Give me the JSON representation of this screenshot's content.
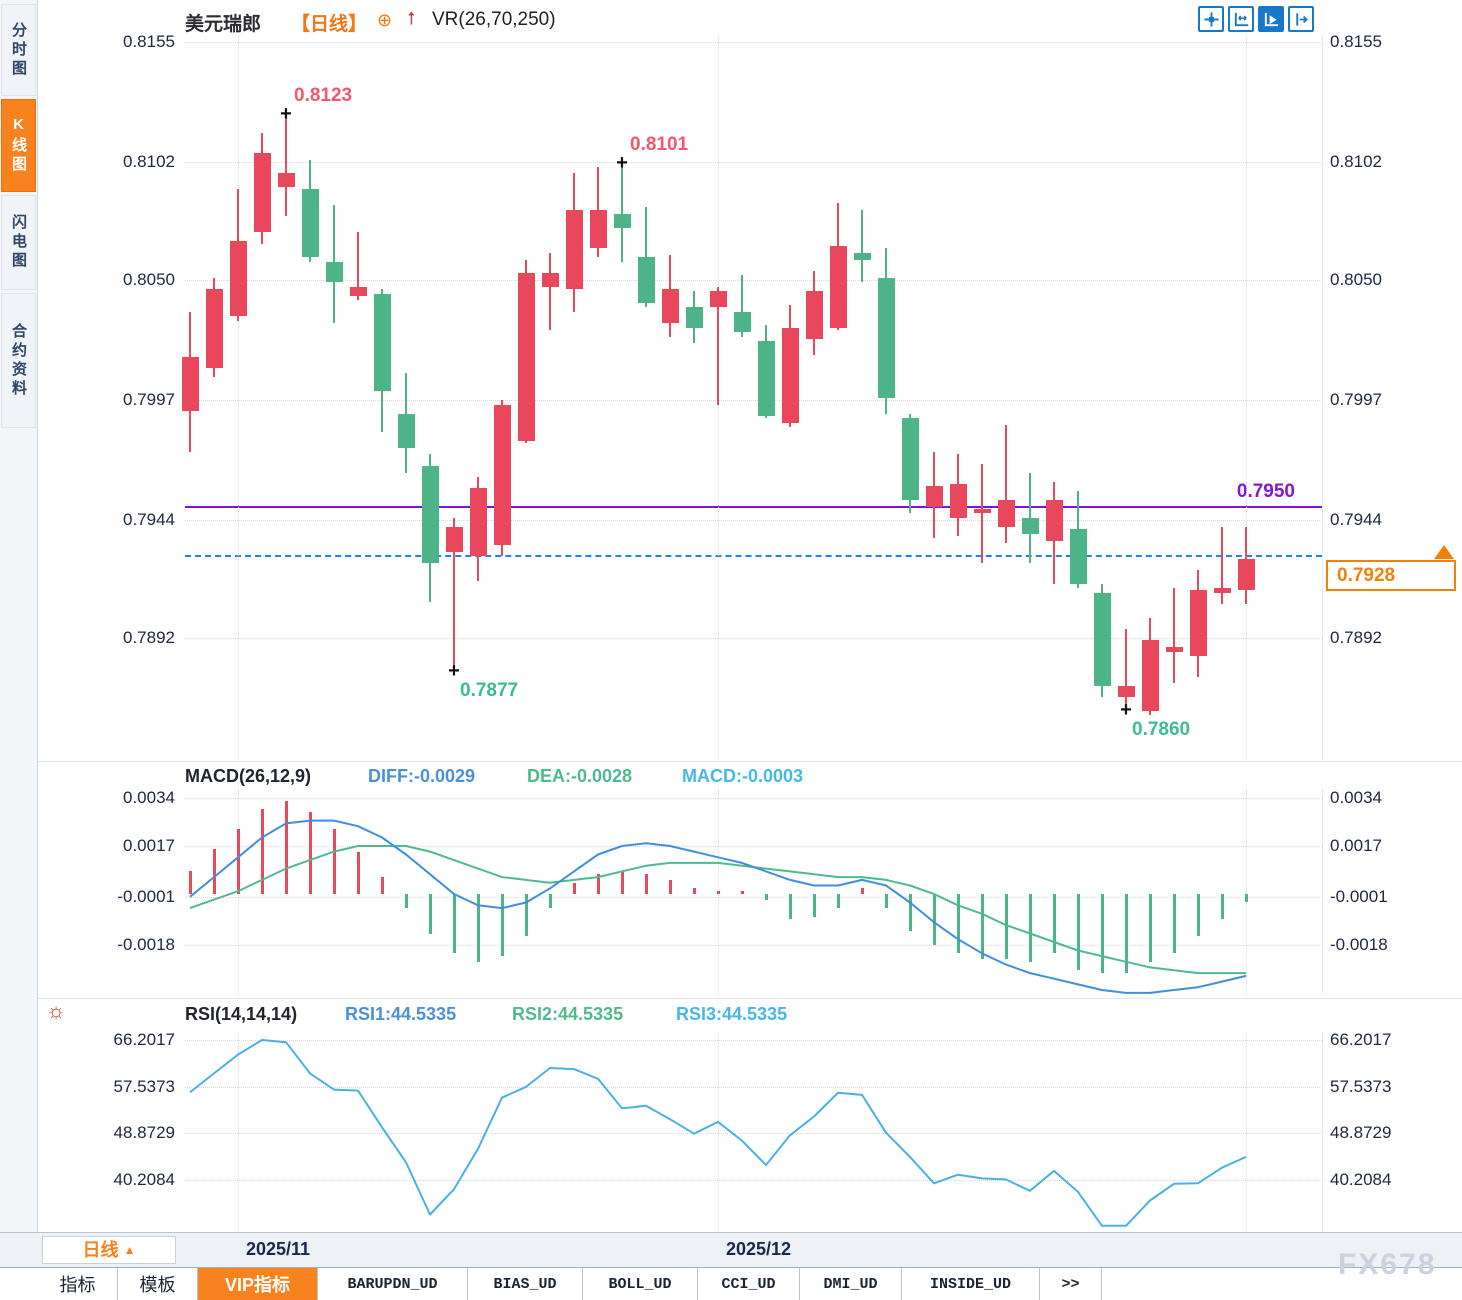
{
  "header": {
    "symbol": "美元瑞郎",
    "period_tag": "【日线】",
    "indicator_label": "VR(26,70,250)"
  },
  "icons": {
    "cross": "+",
    "rsi_sun": "☼",
    "caret_up": "▲",
    "add": "⊕",
    "vr_up_arrow": "↑",
    "toolbar": [
      "pan-crosshair-icon",
      "axis-range-icon",
      "autoplay-scale-icon",
      "go-to-latest-icon"
    ]
  },
  "sidebar": {
    "items": [
      {
        "label": "分时图",
        "active": false
      },
      {
        "label": "K线图",
        "active": true
      },
      {
        "label": "闪电图",
        "active": false
      },
      {
        "label": "合约资料",
        "active": false
      }
    ]
  },
  "colors": {
    "up": "#e9485c",
    "down": "#4cb487",
    "diff_line": "#3f8fdc",
    "dea_line": "#4fba8e",
    "rsi_line": "#49b0e0",
    "support_purple": "#7e10d8",
    "last_price_blue": "#1e82e8",
    "accent_orange": "#f7821e",
    "toolbar_blue": "#1878c8"
  },
  "main_chart": {
    "support_label": "0.7950",
    "price_box": "0.7928"
  },
  "macd_panel": {
    "title": "MACD(26,12,9)",
    "diff_label": "DIFF:-0.0029",
    "dea_label": "DEA:-0.0028",
    "macd_label": "MACD:-0.0003"
  },
  "rsi_panel": {
    "title": "RSI(14,14,14)",
    "rsi1_label": "RSI1:44.5335",
    "rsi2_label": "RSI2:44.5335",
    "rsi3_label": "RSI3:44.5335"
  },
  "bottom": {
    "period_label": "日线",
    "watermark": "FX678",
    "tabs": [
      {
        "label": "指标",
        "mono": false,
        "active": false
      },
      {
        "label": "模板",
        "mono": false,
        "active": false
      },
      {
        "label": "VIP指标",
        "mono": false,
        "active": true
      },
      {
        "label": "BARUPDN_UD",
        "mono": true,
        "active": false
      },
      {
        "label": "BIAS_UD",
        "mono": true,
        "active": false
      },
      {
        "label": "BOLL_UD",
        "mono": true,
        "active": false
      },
      {
        "label": "CCI_UD",
        "mono": true,
        "active": false
      },
      {
        "label": "DMI_UD",
        "mono": true,
        "active": false
      },
      {
        "label": "INSIDE_UD",
        "mono": true,
        "active": false
      },
      {
        "label": ">>",
        "mono": true,
        "active": false
      }
    ]
  },
  "chart_data": {
    "type": "candlestick",
    "symbol": "美元瑞郎",
    "period": "日线",
    "overlay_indicator": "VR(26,70,250)",
    "price_axis_ticks": [
      0.8155,
      0.8102,
      0.805,
      0.7997,
      0.7944,
      0.7892
    ],
    "support_line": 0.795,
    "last_price": 0.7928,
    "x_axis": {
      "labels": [
        "2025/11",
        "2025/12"
      ],
      "gridline_candle_indices": [
        2,
        22,
        44
      ]
    },
    "candles": [
      [
        0.7992,
        0.8036,
        0.7974,
        0.8016
      ],
      [
        0.8011,
        0.8051,
        0.8007,
        0.8046
      ],
      [
        0.8034,
        0.809,
        0.8032,
        0.8067
      ],
      [
        0.8071,
        0.8115,
        0.8066,
        0.8106
      ],
      [
        0.8091,
        0.8123,
        0.8078,
        0.8097
      ],
      [
        0.809,
        0.8103,
        0.8058,
        0.806
      ],
      [
        0.8058,
        0.8083,
        0.8031,
        0.8049
      ],
      [
        0.8043,
        0.8071,
        0.8041,
        0.8047
      ],
      [
        0.8044,
        0.8046,
        0.7983,
        0.8001
      ],
      [
        0.7991,
        0.8009,
        0.7965,
        0.7976
      ],
      [
        0.7968,
        0.7973,
        0.7908,
        0.7925
      ],
      [
        0.793,
        0.7945,
        0.7877,
        0.7941
      ],
      [
        0.7928,
        0.7963,
        0.7917,
        0.7958
      ],
      [
        0.7933,
        0.7997,
        0.7928,
        0.7995
      ],
      [
        0.7979,
        0.8059,
        0.7978,
        0.8053
      ],
      [
        0.8047,
        0.8062,
        0.8028,
        0.8053
      ],
      [
        0.8046,
        0.8097,
        0.8036,
        0.8081
      ],
      [
        0.8064,
        0.81,
        0.806,
        0.8081
      ],
      [
        0.8079,
        0.8101,
        0.8058,
        0.8073
      ],
      [
        0.806,
        0.8082,
        0.8038,
        0.804
      ],
      [
        0.8031,
        0.8061,
        0.8025,
        0.8046
      ],
      [
        0.8038,
        0.8045,
        0.8022,
        0.8029
      ],
      [
        0.8038,
        0.8047,
        0.7995,
        0.8045
      ],
      [
        0.8036,
        0.8052,
        0.8025,
        0.8027
      ],
      [
        0.8023,
        0.803,
        0.7989,
        0.799
      ],
      [
        0.7987,
        0.8039,
        0.7985,
        0.8029
      ],
      [
        0.8024,
        0.8054,
        0.8017,
        0.8045
      ],
      [
        0.8029,
        0.8084,
        0.8028,
        0.8065
      ],
      [
        0.8062,
        0.8081,
        0.8049,
        0.8059
      ],
      [
        0.8051,
        0.8064,
        0.7991,
        0.7998
      ],
      [
        0.7989,
        0.7991,
        0.7947,
        0.7953
      ],
      [
        0.795,
        0.7974,
        0.7936,
        0.7959
      ],
      [
        0.7945,
        0.7973,
        0.7937,
        0.796
      ],
      [
        0.7947,
        0.7969,
        0.7925,
        0.7949
      ],
      [
        0.7941,
        0.7986,
        0.7934,
        0.7953
      ],
      [
        0.7945,
        0.7965,
        0.7925,
        0.7938
      ],
      [
        0.7935,
        0.7961,
        0.7916,
        0.7953
      ],
      [
        0.794,
        0.7957,
        0.7914,
        0.7916
      ],
      [
        0.7912,
        0.7916,
        0.7866,
        0.7871
      ],
      [
        0.7866,
        0.7896,
        0.786,
        0.7871
      ],
      [
        0.786,
        0.7901,
        0.7858,
        0.7891
      ],
      [
        0.7886,
        0.7914,
        0.7872,
        0.7888
      ],
      [
        0.7884,
        0.7922,
        0.7875,
        0.7913
      ],
      [
        0.7912,
        0.7941,
        0.7907,
        0.7914
      ],
      [
        0.7913,
        0.7941,
        0.7907,
        0.7927
      ]
    ],
    "markers": [
      {
        "index": 4,
        "price": 0.8123,
        "label": "0.8123",
        "type": "high"
      },
      {
        "index": 18,
        "price": 0.8101,
        "label": "0.8101",
        "type": "high"
      },
      {
        "index": 11,
        "price": 0.7877,
        "label": "0.7877",
        "type": "low"
      },
      {
        "index": 39,
        "price": 0.786,
        "label": "0.7860",
        "type": "low"
      }
    ],
    "macd": {
      "params": "(26,12,9)",
      "axis_ticks": [
        0.0034,
        0.0017,
        -0.0001,
        -0.0018
      ],
      "diff": [
        -0.0001,
        0.0006,
        0.0013,
        0.002,
        0.0025,
        0.0026,
        0.0026,
        0.0024,
        0.002,
        0.0014,
        0.0007,
        0.0,
        -0.0004,
        -0.0005,
        -0.0003,
        0.0002,
        0.0008,
        0.0014,
        0.0017,
        0.0018,
        0.0017,
        0.0015,
        0.0013,
        0.0011,
        0.0008,
        0.0005,
        0.0003,
        0.0003,
        0.0005,
        0.0003,
        -0.0003,
        -0.001,
        -0.0016,
        -0.0021,
        -0.0025,
        -0.0028,
        -0.003,
        -0.0032,
        -0.0034,
        -0.0035,
        -0.0035,
        -0.0034,
        -0.0033,
        -0.0031,
        -0.0029
      ],
      "dea": [
        -0.0005,
        -0.0002,
        0.0001,
        0.0005,
        0.0009,
        0.0012,
        0.0015,
        0.0017,
        0.0017,
        0.0017,
        0.0015,
        0.0012,
        0.0009,
        0.0006,
        0.0005,
        0.0004,
        0.0005,
        0.0006,
        0.0008,
        0.001,
        0.0011,
        0.0011,
        0.0011,
        0.001,
        0.0009,
        0.0008,
        0.0007,
        0.0006,
        0.0006,
        0.0005,
        0.0003,
        0.0,
        -0.0004,
        -0.0007,
        -0.0011,
        -0.0014,
        -0.0017,
        -0.002,
        -0.0022,
        -0.0024,
        -0.0026,
        -0.0027,
        -0.0028,
        -0.0028,
        -0.0028
      ],
      "hist": [
        0.0008,
        0.0016,
        0.0023,
        0.003,
        0.0033,
        0.0029,
        0.0023,
        0.0015,
        0.0006,
        -0.0005,
        -0.0014,
        -0.0021,
        -0.0024,
        -0.0022,
        -0.0015,
        -0.0005,
        0.0004,
        0.0007,
        0.0008,
        0.0007,
        0.0005,
        0.0002,
        0.0001,
        0.0001,
        -0.0002,
        -0.0009,
        -0.0008,
        -0.0005,
        0.0002,
        -0.0005,
        -0.0013,
        -0.0018,
        -0.0021,
        -0.0023,
        -0.0023,
        -0.0024,
        -0.0021,
        -0.0027,
        -0.0028,
        -0.0028,
        -0.0024,
        -0.0021,
        -0.0015,
        -0.0009,
        -0.0003
      ]
    },
    "rsi": {
      "params": "(14,14,14)",
      "axis_ticks": [
        66.2017,
        57.5373,
        48.8729,
        40.2084
      ],
      "values": [
        56.5,
        60.0,
        63.5,
        66.2,
        65.8,
        60.0,
        57.0,
        56.8,
        50.0,
        43.5,
        33.8,
        38.5,
        46.0,
        55.5,
        57.5,
        61.0,
        60.8,
        59.0,
        53.5,
        54.0,
        51.5,
        48.8,
        51.0,
        47.5,
        43.0,
        48.5,
        52.0,
        56.4,
        56.0,
        49.0,
        44.5,
        39.6,
        41.2,
        40.5,
        40.3,
        38.2,
        41.9,
        38.0,
        31.7,
        31.7,
        36.4,
        39.5,
        39.6,
        42.5,
        44.5
      ]
    }
  }
}
